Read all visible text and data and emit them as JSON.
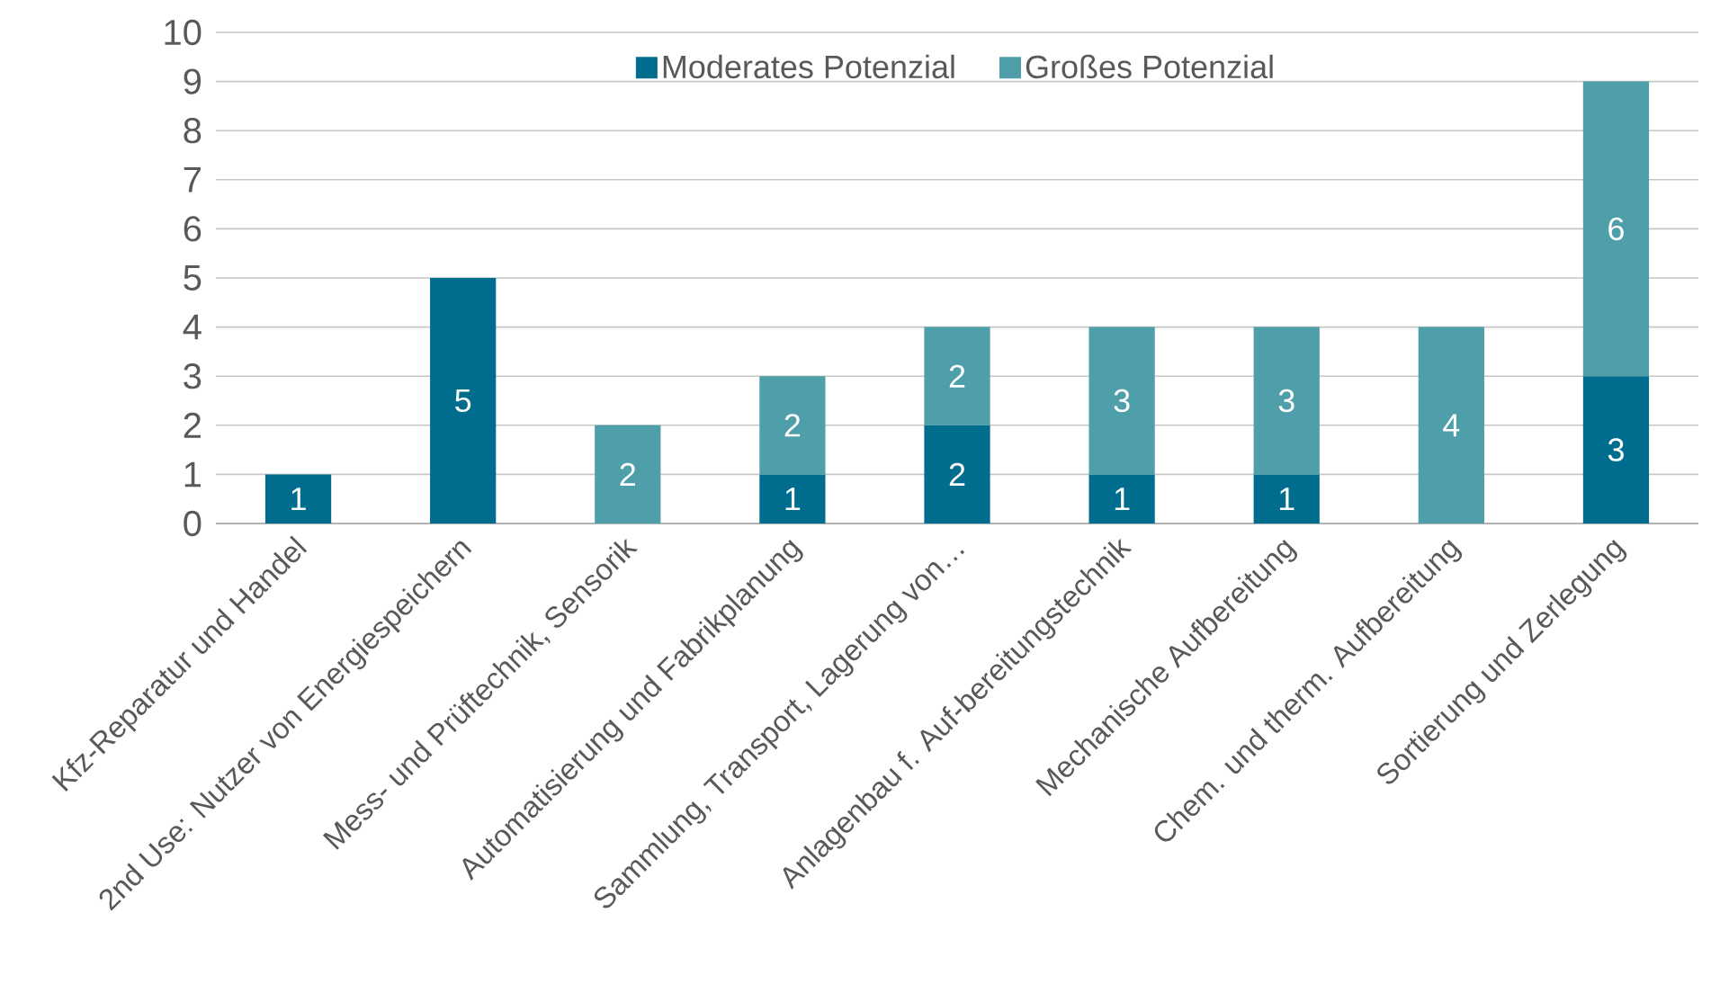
{
  "chart_data": {
    "type": "bar",
    "stacked": true,
    "categories": [
      "Kfz-Reparatur und Handel",
      "2nd Use: Nutzer von Energiespeichern",
      "Mess- und Prüftechnik, Sensorik",
      "Automatisierung und Fabrikplanung",
      "Sammlung, Transport, Lagerung von…",
      "Anlagenbau f. Auf-bereitungstechnik",
      "Mechanische Aufbereitung",
      "Chem. und therm. Aufbereitung",
      "Sortierung und Zerlegung"
    ],
    "series": [
      {
        "name": "Moderates Potenzial",
        "color": "#006d8f",
        "values": [
          1,
          5,
          null,
          1,
          2,
          1,
          1,
          null,
          3
        ]
      },
      {
        "name": "Großes Potenzial",
        "color": "#4e9faa",
        "values": [
          null,
          null,
          2,
          2,
          2,
          3,
          3,
          4,
          6
        ]
      }
    ],
    "ylim": [
      0,
      10
    ],
    "yticks": [
      0,
      1,
      2,
      3,
      4,
      5,
      6,
      7,
      8,
      9,
      10
    ],
    "grid": "y",
    "legend": "top",
    "data_labels": true
  }
}
